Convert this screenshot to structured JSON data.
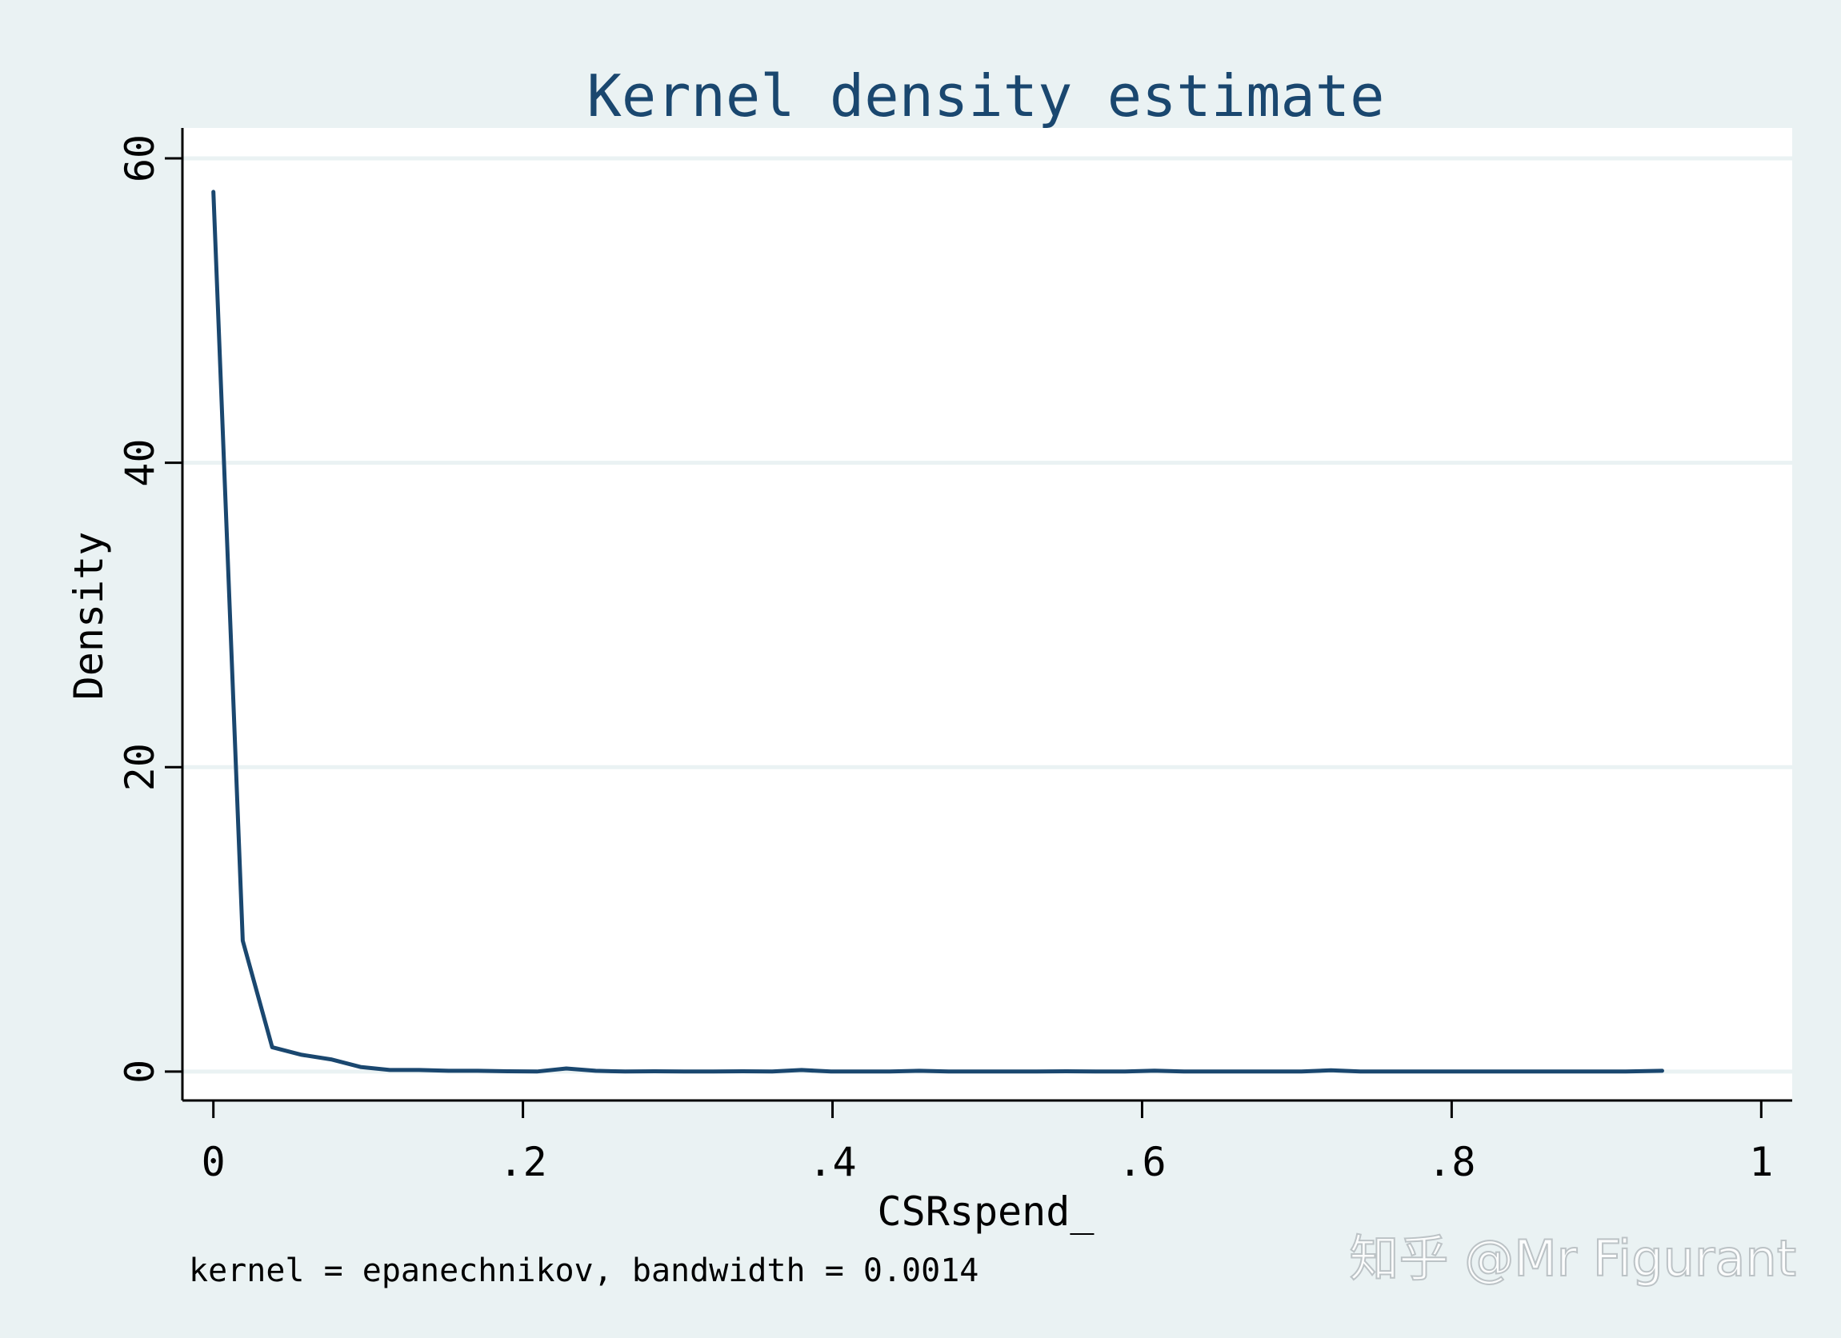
{
  "chart_data": {
    "type": "line",
    "title": "Kernel density estimate",
    "xlabel": "CSRspend_",
    "ylabel": "Density",
    "note": "kernel = epanechnikov, bandwidth = 0.0014",
    "xlim": [
      -0.02,
      1.02
    ],
    "ylim": [
      -1.9,
      62
    ],
    "x_ticks": [
      0,
      0.2,
      0.4,
      0.6,
      0.8,
      1
    ],
    "x_tick_labels": [
      "0",
      ".2",
      ".4",
      ".6",
      ".8",
      "1"
    ],
    "y_ticks": [
      0,
      20,
      40,
      60
    ],
    "y_tick_labels": [
      "0",
      "20",
      "40",
      "60"
    ],
    "grid": true,
    "legend": "none",
    "colors": {
      "line": "#1a476f",
      "background": "#eaf2f3",
      "plot": "#ffffff",
      "grid": "#eaf2f3",
      "axis": "#000000",
      "title": "#1a476f"
    },
    "series": [
      {
        "x": [
          0.0,
          0.019,
          0.038,
          0.057,
          0.076,
          0.095,
          0.114,
          0.133,
          0.152,
          0.171,
          0.19,
          0.209,
          0.228,
          0.247,
          0.266,
          0.285,
          0.304,
          0.323,
          0.342,
          0.361,
          0.38,
          0.399,
          0.418,
          0.437,
          0.456,
          0.475,
          0.494,
          0.513,
          0.532,
          0.551,
          0.57,
          0.589,
          0.608,
          0.627,
          0.646,
          0.665,
          0.684,
          0.703,
          0.722,
          0.741,
          0.76,
          0.779,
          0.798,
          0.817,
          0.836,
          0.855,
          0.874,
          0.893,
          0.912,
          0.936
        ],
        "y": [
          57.8,
          8.6,
          1.6,
          1.1,
          0.8,
          0.3,
          0.1,
          0.1,
          0.05,
          0.05,
          0.02,
          0.0,
          0.2,
          0.05,
          0.0,
          0.02,
          0.0,
          0.0,
          0.02,
          0.0,
          0.1,
          0.0,
          0.0,
          0.0,
          0.05,
          0.0,
          0.0,
          0.0,
          0.0,
          0.02,
          0.0,
          0.0,
          0.06,
          0.0,
          0.0,
          0.0,
          0.0,
          0.0,
          0.08,
          0.0,
          0.0,
          0.0,
          0.0,
          0.0,
          0.0,
          0.0,
          0.0,
          0.0,
          0.0,
          0.05
        ]
      }
    ]
  },
  "watermark": "知乎 @Mr Figurant"
}
